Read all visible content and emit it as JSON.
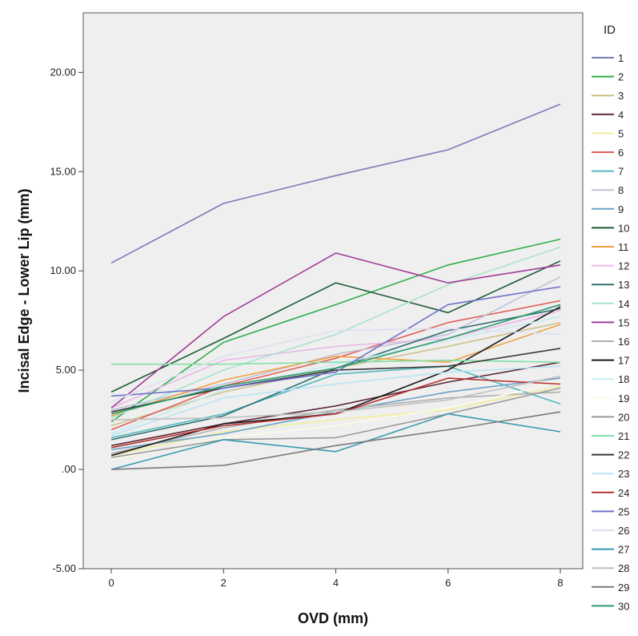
{
  "chart_data": {
    "type": "line",
    "xlabel": "OVD (mm)",
    "ylabel": "Incisal Edge - Lower Lip (mm)",
    "legend_title": "ID",
    "legend_placement": "right",
    "grid": false,
    "xlim": [
      -0.5,
      8.4
    ],
    "ylim": [
      -5,
      23
    ],
    "x_ticks": [
      0,
      2,
      4,
      6,
      8
    ],
    "y_ticks": [
      -5,
      0,
      5,
      10,
      15,
      20
    ],
    "x_tick_labels": [
      "0",
      "2",
      "4",
      "6",
      "8"
    ],
    "y_tick_labels": [
      "-5.00",
      ".00",
      "5.00",
      "10.00",
      "15.00",
      "20.00"
    ],
    "plot_background": "#efefef",
    "x": [
      0,
      2,
      4,
      6,
      8
    ],
    "series": [
      {
        "name": "1",
        "color": "#7b7bbb",
        "values": [
          10.4,
          13.4,
          14.8,
          16.1,
          18.4
        ]
      },
      {
        "name": "2",
        "color": "#2fae4a",
        "values": [
          2.4,
          6.4,
          8.3,
          10.3,
          11.6
        ]
      },
      {
        "name": "3",
        "color": "#c9c28a",
        "values": [
          2.2,
          3.9,
          5.1,
          6.2,
          7.4
        ]
      },
      {
        "name": "4",
        "color": "#5c2a3a",
        "values": [
          1.2,
          2.3,
          3.2,
          4.4,
          5.4
        ]
      },
      {
        "name": "5",
        "color": "#f2ee9a",
        "values": [
          0.7,
          1.9,
          2.5,
          3.0,
          4.2
        ]
      },
      {
        "name": "6",
        "color": "#e0605a",
        "values": [
          2.0,
          4.2,
          5.6,
          7.4,
          8.5
        ]
      },
      {
        "name": "7",
        "color": "#53b8c0",
        "values": [
          1.6,
          2.8,
          4.8,
          5.2,
          3.3
        ]
      },
      {
        "name": "8",
        "color": "#c0c0da",
        "values": [
          3.0,
          4.3,
          5.8,
          6.8,
          9.7
        ]
      },
      {
        "name": "9",
        "color": "#6ca2c8",
        "values": [
          1.0,
          1.8,
          2.9,
          3.9,
          4.6
        ]
      },
      {
        "name": "10",
        "color": "#1e5c36",
        "values": [
          3.9,
          6.6,
          9.4,
          7.9,
          10.5
        ]
      },
      {
        "name": "11",
        "color": "#f0a040",
        "values": [
          2.7,
          4.5,
          5.7,
          5.4,
          7.3
        ]
      },
      {
        "name": "12",
        "color": "#e8b8e8",
        "values": [
          3.1,
          5.5,
          6.2,
          6.6,
          8.0
        ]
      },
      {
        "name": "13",
        "color": "#2f6f72",
        "values": [
          1.5,
          2.7,
          5.1,
          7.0,
          8.1
        ]
      },
      {
        "name": "14",
        "color": "#a8e2cc",
        "values": [
          2.6,
          5.0,
          6.8,
          9.3,
          11.2
        ]
      },
      {
        "name": "15",
        "color": "#a23c98",
        "values": [
          3.1,
          7.7,
          10.9,
          9.4,
          10.3
        ]
      },
      {
        "name": "16",
        "color": "#b0b0b0",
        "values": [
          0.8,
          2.1,
          3.0,
          3.6,
          3.9
        ]
      },
      {
        "name": "17",
        "color": "#1a1a1a",
        "values": [
          0.7,
          2.3,
          2.8,
          5.0,
          8.2
        ]
      },
      {
        "name": "18",
        "color": "#c8eaf2",
        "values": [
          1.8,
          4.0,
          5.3,
          6.5,
          7.7
        ]
      },
      {
        "name": "19",
        "color": "#fbfbe8",
        "values": [
          0.5,
          1.6,
          2.2,
          3.1,
          4.4
        ]
      },
      {
        "name": "20",
        "color": "#9a9a9a",
        "values": [
          0.6,
          1.5,
          1.6,
          2.8,
          4.1
        ]
      },
      {
        "name": "21",
        "color": "#7fe0a8",
        "values": [
          5.3,
          5.3,
          5.4,
          5.5,
          5.4
        ]
      },
      {
        "name": "22",
        "color": "#3a3a3a",
        "values": [
          2.9,
          4.1,
          5.0,
          5.2,
          6.1
        ]
      },
      {
        "name": "23",
        "color": "#b8e4f4",
        "values": [
          1.7,
          3.6,
          4.3,
          4.9,
          5.2
        ]
      },
      {
        "name": "24",
        "color": "#b83030",
        "values": [
          1.1,
          2.2,
          2.8,
          4.6,
          4.3
        ]
      },
      {
        "name": "25",
        "color": "#7070cc",
        "values": [
          3.7,
          4.1,
          4.9,
          8.3,
          9.2
        ]
      },
      {
        "name": "26",
        "color": "#dde0f0",
        "values": [
          3.4,
          5.7,
          7.0,
          7.1,
          6.8
        ]
      },
      {
        "name": "27",
        "color": "#3a9ab0",
        "values": [
          0.0,
          1.5,
          0.9,
          2.8,
          1.9
        ]
      },
      {
        "name": "28",
        "color": "#c0c0c0",
        "values": [
          2.5,
          2.6,
          2.9,
          3.5,
          4.7
        ]
      },
      {
        "name": "29",
        "color": "#7a7a7a",
        "values": [
          0.0,
          0.2,
          1.2,
          2.0,
          2.9
        ]
      },
      {
        "name": "30",
        "color": "#2a9a6a",
        "values": [
          2.8,
          4.2,
          5.1,
          6.6,
          8.3
        ]
      }
    ]
  }
}
